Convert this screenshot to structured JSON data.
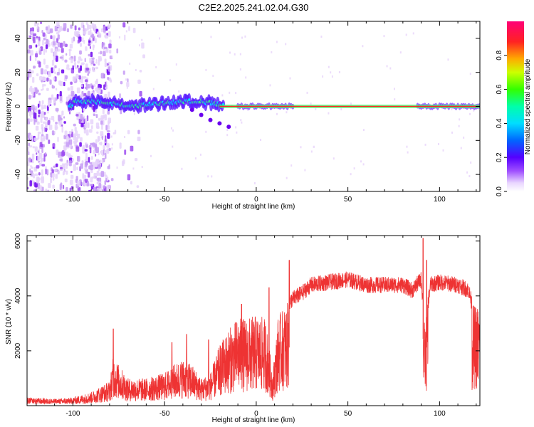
{
  "title": "C2E2.2025.241.02.04.G30",
  "chart_data": [
    {
      "type": "heatmap",
      "name": "spectrogram",
      "xlabel": "Height of straight line (km)",
      "ylabel": "Frequency (Hz)",
      "xlim": [
        -125,
        122
      ],
      "ylim": [
        -50,
        50
      ],
      "xticks": [
        -100,
        -50,
        0,
        50,
        100
      ],
      "yticks": [
        -40,
        -20,
        0,
        20,
        40
      ],
      "xtick_labels": [
        "-100",
        "-50",
        "0",
        "50",
        "100"
      ],
      "ytick_labels": [
        "-40",
        "-20",
        "0",
        "20",
        "40"
      ],
      "colorbar": {
        "label": "Normalized spectral amplitude",
        "range": [
          0,
          1
        ],
        "ticks": [
          0.0,
          0.2,
          0.4,
          0.6,
          0.8
        ],
        "tick_labels": [
          "0.0",
          "0.2",
          "0.4",
          "0.6",
          "0.8"
        ]
      },
      "noise_region": {
        "x": [
          -125,
          -80
        ],
        "y": [
          -50,
          50
        ]
      },
      "ridge": [
        {
          "x": -100,
          "y": 3
        },
        {
          "x": -90,
          "y": 3
        },
        {
          "x": -80,
          "y": 2
        },
        {
          "x": -70,
          "y": 0
        },
        {
          "x": -60,
          "y": 1
        },
        {
          "x": -50,
          "y": 2
        },
        {
          "x": -40,
          "y": 3
        },
        {
          "x": -30,
          "y": 3
        },
        {
          "x": -20,
          "y": 1
        },
        {
          "x": -15,
          "y": 0
        },
        {
          "x": 0,
          "y": 0
        },
        {
          "x": 50,
          "y": 0
        },
        {
          "x": 100,
          "y": 0
        },
        {
          "x": 122,
          "y": 0
        }
      ],
      "branch": [
        {
          "x": -35,
          "y": -2
        },
        {
          "x": -30,
          "y": -5
        },
        {
          "x": -25,
          "y": -8
        },
        {
          "x": -20,
          "y": -10
        },
        {
          "x": -15,
          "y": -12
        }
      ]
    },
    {
      "type": "line",
      "name": "snr",
      "xlabel": "Height of straight line (km)",
      "ylabel": "SNR (10 * v/v)",
      "xlim": [
        -125,
        122
      ],
      "ylim": [
        0,
        6200
      ],
      "xticks": [
        -100,
        -50,
        0,
        50,
        100
      ],
      "yticks": [
        2000,
        4000,
        6000
      ],
      "xtick_labels": [
        "-100",
        "-50",
        "0",
        "50",
        "100"
      ],
      "ytick_labels": [
        "2000",
        "4000",
        "6000"
      ],
      "color": "#ee3333",
      "envelope": [
        {
          "x": -125,
          "y": 300
        },
        {
          "x": -110,
          "y": 250
        },
        {
          "x": -100,
          "y": 300
        },
        {
          "x": -90,
          "y": 500
        },
        {
          "x": -80,
          "y": 900
        },
        {
          "x": -78,
          "y": 1800
        },
        {
          "x": -70,
          "y": 1000
        },
        {
          "x": -60,
          "y": 1000
        },
        {
          "x": -50,
          "y": 1200
        },
        {
          "x": -45,
          "y": 1500
        },
        {
          "x": -40,
          "y": 1700
        },
        {
          "x": -35,
          "y": 1500
        },
        {
          "x": -30,
          "y": 1000
        },
        {
          "x": -25,
          "y": 1200
        },
        {
          "x": -20,
          "y": 2200
        },
        {
          "x": -15,
          "y": 2800
        },
        {
          "x": -10,
          "y": 3200
        },
        {
          "x": -5,
          "y": 3200
        },
        {
          "x": 0,
          "y": 3300
        },
        {
          "x": 5,
          "y": 3200
        },
        {
          "x": 9,
          "y": 1200
        },
        {
          "x": 12,
          "y": 3300
        },
        {
          "x": 20,
          "y": 4000
        },
        {
          "x": 25,
          "y": 4200
        },
        {
          "x": 30,
          "y": 4500
        },
        {
          "x": 40,
          "y": 4600
        },
        {
          "x": 50,
          "y": 4700
        },
        {
          "x": 60,
          "y": 4500
        },
        {
          "x": 70,
          "y": 4500
        },
        {
          "x": 80,
          "y": 4500
        },
        {
          "x": 85,
          "y": 4300
        },
        {
          "x": 90,
          "y": 4700
        },
        {
          "x": 92,
          "y": 2900
        },
        {
          "x": 95,
          "y": 4500
        },
        {
          "x": 100,
          "y": 4600
        },
        {
          "x": 110,
          "y": 4500
        },
        {
          "x": 116,
          "y": 4300
        },
        {
          "x": 118,
          "y": 3700
        },
        {
          "x": 122,
          "y": 3700
        }
      ],
      "peaks": [
        {
          "x": -78,
          "y": 2800
        },
        {
          "x": -46,
          "y": 2300
        },
        {
          "x": -38,
          "y": 2600
        },
        {
          "x": -26,
          "y": 2400
        },
        {
          "x": -8,
          "y": 3700
        },
        {
          "x": 7,
          "y": 4300
        },
        {
          "x": 18,
          "y": 5300
        },
        {
          "x": 91,
          "y": 6100
        },
        {
          "x": 93,
          "y": 5300
        }
      ]
    }
  ]
}
